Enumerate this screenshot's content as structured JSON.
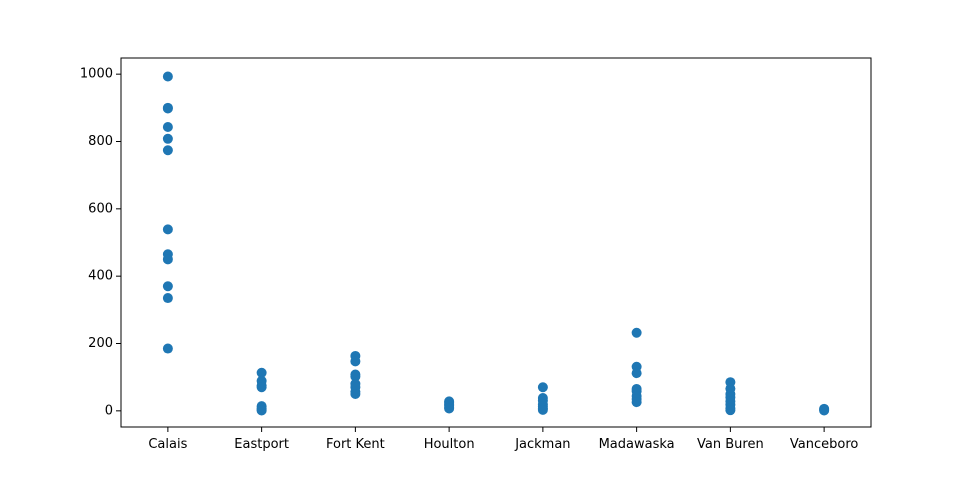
{
  "chart_data": {
    "type": "scatter",
    "title": "",
    "xlabel": "",
    "ylabel": "",
    "categories": [
      "Calais",
      "Eastport",
      "Fort Kent",
      "Houlton",
      "Jackman",
      "Madawaska",
      "Van Buren",
      "Vanceboro"
    ],
    "ylim": [
      -48,
      1048
    ],
    "yticks": [
      0,
      200,
      400,
      600,
      800,
      1000
    ],
    "grid": false,
    "legend": "none",
    "marker_color": "#1f77b4",
    "points": [
      {
        "x": "Calais",
        "y": 993
      },
      {
        "x": "Calais",
        "y": 900
      },
      {
        "x": "Calais",
        "y": 898
      },
      {
        "x": "Calais",
        "y": 843
      },
      {
        "x": "Calais",
        "y": 808
      },
      {
        "x": "Calais",
        "y": 774
      },
      {
        "x": "Calais",
        "y": 539
      },
      {
        "x": "Calais",
        "y": 465
      },
      {
        "x": "Calais",
        "y": 450
      },
      {
        "x": "Calais",
        "y": 370
      },
      {
        "x": "Calais",
        "y": 335
      },
      {
        "x": "Calais",
        "y": 185
      },
      {
        "x": "Eastport",
        "y": 113
      },
      {
        "x": "Eastport",
        "y": 89
      },
      {
        "x": "Eastport",
        "y": 75
      },
      {
        "x": "Eastport",
        "y": 70
      },
      {
        "x": "Eastport",
        "y": 14
      },
      {
        "x": "Eastport",
        "y": 8
      },
      {
        "x": "Eastport",
        "y": 3
      },
      {
        "x": "Eastport",
        "y": 1
      },
      {
        "x": "Fort Kent",
        "y": 163
      },
      {
        "x": "Fort Kent",
        "y": 147
      },
      {
        "x": "Fort Kent",
        "y": 108
      },
      {
        "x": "Fort Kent",
        "y": 102
      },
      {
        "x": "Fort Kent",
        "y": 80
      },
      {
        "x": "Fort Kent",
        "y": 70
      },
      {
        "x": "Fort Kent",
        "y": 57
      },
      {
        "x": "Fort Kent",
        "y": 50
      },
      {
        "x": "Houlton",
        "y": 28
      },
      {
        "x": "Houlton",
        "y": 24
      },
      {
        "x": "Houlton",
        "y": 20
      },
      {
        "x": "Houlton",
        "y": 15
      },
      {
        "x": "Houlton",
        "y": 10
      },
      {
        "x": "Houlton",
        "y": 7
      },
      {
        "x": "Jackman",
        "y": 70
      },
      {
        "x": "Jackman",
        "y": 38
      },
      {
        "x": "Jackman",
        "y": 30
      },
      {
        "x": "Jackman",
        "y": 20
      },
      {
        "x": "Jackman",
        "y": 14
      },
      {
        "x": "Jackman",
        "y": 8
      },
      {
        "x": "Jackman",
        "y": 3
      },
      {
        "x": "Madawaska",
        "y": 232
      },
      {
        "x": "Madawaska",
        "y": 131
      },
      {
        "x": "Madawaska",
        "y": 112
      },
      {
        "x": "Madawaska",
        "y": 65
      },
      {
        "x": "Madawaska",
        "y": 58
      },
      {
        "x": "Madawaska",
        "y": 44
      },
      {
        "x": "Madawaska",
        "y": 35
      },
      {
        "x": "Madawaska",
        "y": 26
      },
      {
        "x": "Van Buren",
        "y": 85
      },
      {
        "x": "Van Buren",
        "y": 66
      },
      {
        "x": "Van Buren",
        "y": 50
      },
      {
        "x": "Van Buren",
        "y": 40
      },
      {
        "x": "Van Buren",
        "y": 28
      },
      {
        "x": "Van Buren",
        "y": 18
      },
      {
        "x": "Van Buren",
        "y": 8
      },
      {
        "x": "Van Buren",
        "y": 2
      },
      {
        "x": "Vanceboro",
        "y": 6
      },
      {
        "x": "Vanceboro",
        "y": 3
      },
      {
        "x": "Vanceboro",
        "y": 1
      }
    ]
  }
}
